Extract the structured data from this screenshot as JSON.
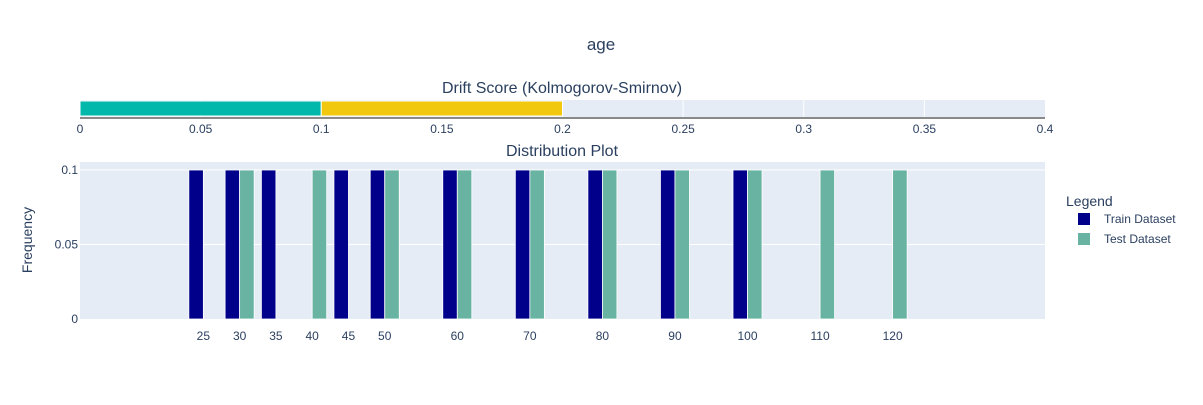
{
  "chart_data": [
    {
      "type": "bar",
      "orientation": "horizontal",
      "title": "age",
      "subtitle": "Drift Score (Kolmogorov-Smirnov)",
      "xlim": [
        0,
        0.4
      ],
      "x_ticks": [
        "0",
        "0.05",
        "0.1",
        "0.15",
        "0.2",
        "0.25",
        "0.3",
        "0.35",
        "0.4"
      ],
      "segments": [
        {
          "from": 0,
          "to": 0.1,
          "color": "#01b8aa"
        },
        {
          "from": 0.1,
          "to": 0.2,
          "color": "#f2c80f"
        }
      ],
      "threshold_line": 0,
      "grid": true
    },
    {
      "type": "bar",
      "subtitle": "Distribution Plot",
      "ylabel": "Frequency",
      "ylim": [
        0,
        0.1
      ],
      "y_ticks": [
        "0",
        "0.05",
        "0.1"
      ],
      "x_ticks": [
        "25",
        "30",
        "35",
        "40",
        "45",
        "50",
        "60",
        "70",
        "80",
        "90",
        "100",
        "110",
        "120"
      ],
      "x_tick_values": [
        25,
        30,
        35,
        40,
        45,
        50,
        60,
        70,
        80,
        90,
        100,
        110,
        120
      ],
      "xlim": [
        8,
        141
      ],
      "legend": {
        "title": "Legend",
        "placement": "right"
      },
      "series": [
        {
          "name": "Train Dataset",
          "color": "#00008b",
          "x": [
            24,
            29,
            34,
            44,
            49,
            59,
            69,
            79,
            89,
            99
          ],
          "values": [
            0.1,
            0.1,
            0.1,
            0.1,
            0.1,
            0.1,
            0.1,
            0.1,
            0.1,
            0.1
          ]
        },
        {
          "name": "Test Dataset",
          "color": "#69b3a2",
          "x": [
            31,
            41,
            51,
            61,
            71,
            81,
            91,
            101,
            111,
            121
          ],
          "values": [
            0.1,
            0.1,
            0.1,
            0.1,
            0.1,
            0.1,
            0.1,
            0.1,
            0.1,
            0.1
          ]
        }
      ],
      "grid": true
    }
  ]
}
